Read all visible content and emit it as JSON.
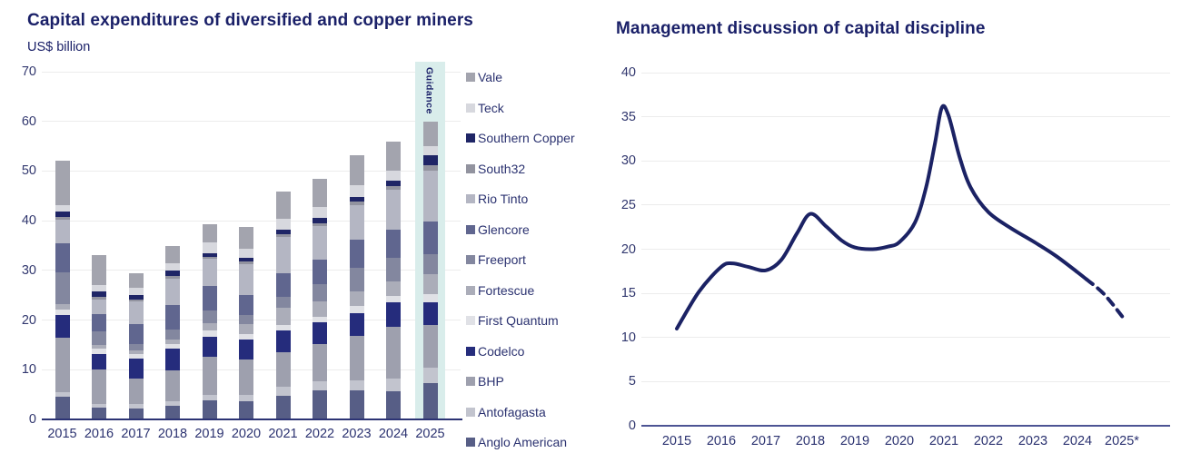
{
  "left_chart": {
    "title": "Capital expenditures of diversified and copper miners",
    "subtitle": "US$ billion",
    "guidance_label": "Guidance"
  },
  "right_chart": {
    "title": "Management discussion of capital discipline"
  },
  "colors": {
    "title_navy": "#1A2068",
    "tick_navy": "#32386F",
    "gridline": "#ECECEC",
    "left_axis_line": "#2C3374",
    "right_axis_line": "#4D5494",
    "guidance_band": "#D9EDEB",
    "line": "#1B2264"
  },
  "chart_data": [
    {
      "type": "bar",
      "stacked": true,
      "title": "Capital expenditures of diversified and copper miners",
      "ylabel": "US$ billion",
      "categories": [
        "2015",
        "2016",
        "2017",
        "2018",
        "2019",
        "2020",
        "2021",
        "2022",
        "2023",
        "2024",
        "2025"
      ],
      "ylim": [
        0,
        70
      ],
      "yticks": [
        0,
        10,
        20,
        30,
        40,
        50,
        60,
        70
      ],
      "grid": "horizontal",
      "legend_position": "right",
      "legend_order_top_to_bottom": [
        "Vale",
        "Teck",
        "Southern Copper",
        "South32",
        "Rio Tinto",
        "Glencore",
        "Freeport",
        "Fortescue",
        "First Quantum",
        "Codelco",
        "BHP",
        "Antofagasta",
        "Anglo American"
      ],
      "highlight": {
        "category": "2025",
        "label": "Guidance",
        "band_color": "#D9EDEB"
      },
      "series": [
        {
          "name": "Anglo American",
          "color": "#575E86",
          "values": [
            4.5,
            2.4,
            2.2,
            2.8,
            3.8,
            3.6,
            4.7,
            5.8,
            5.8,
            5.7,
            7.3
          ]
        },
        {
          "name": "Antofagasta",
          "color": "#C2C4CE",
          "values": [
            1.0,
            0.7,
            0.9,
            0.9,
            1.2,
            1.3,
            1.8,
            1.9,
            2.1,
            2.6,
            3.1
          ]
        },
        {
          "name": "BHP",
          "color": "#9EA0AE",
          "values": [
            11.0,
            6.9,
            5.2,
            6.2,
            7.6,
            7.1,
            7.1,
            7.5,
            8.9,
            10.3,
            8.6
          ]
        },
        {
          "name": "Codelco",
          "color": "#252C7C",
          "values": [
            4.6,
            3.2,
            4.0,
            4.3,
            4.0,
            4.0,
            4.4,
            4.3,
            4.5,
            4.9,
            4.6
          ]
        },
        {
          "name": "First Quantum",
          "color": "#E0E1E6",
          "values": [
            1.0,
            1.0,
            0.8,
            1.0,
            1.3,
            1.1,
            1.0,
            1.2,
            1.6,
            1.3,
            1.7
          ]
        },
        {
          "name": "Fortescue",
          "color": "#ABADB9",
          "values": [
            1.2,
            0.7,
            0.7,
            0.9,
            1.4,
            2.0,
            3.5,
            3.1,
            2.8,
            2.9,
            4.0
          ]
        },
        {
          "name": "Freeport",
          "color": "#83879F",
          "values": [
            6.3,
            2.8,
            1.4,
            2.0,
            2.6,
            2.0,
            2.1,
            3.5,
            4.8,
            4.8,
            4.0
          ]
        },
        {
          "name": "Glencore",
          "color": "#60668F",
          "values": [
            5.9,
            3.5,
            4.0,
            4.9,
            4.9,
            4.0,
            4.8,
            4.8,
            5.6,
            5.7,
            6.6
          ]
        },
        {
          "name": "Rio Tinto",
          "color": "#B4B6C3",
          "values": [
            4.7,
            3.0,
            4.5,
            5.4,
            5.5,
            6.2,
            7.4,
            6.8,
            7.1,
            8.1,
            10.1
          ]
        },
        {
          "name": "South32",
          "color": "#92939F",
          "values": [
            0.5,
            0.4,
            0.4,
            0.5,
            0.5,
            0.5,
            0.5,
            0.6,
            0.6,
            0.7,
            1.2
          ]
        },
        {
          "name": "Southern Copper",
          "color": "#1F2566",
          "values": [
            1.2,
            1.1,
            1.0,
            1.1,
            0.7,
            0.8,
            0.9,
            1.0,
            1.0,
            1.1,
            2.0
          ]
        },
        {
          "name": "Teck",
          "color": "#D7D8DE",
          "values": [
            1.3,
            1.4,
            1.4,
            1.5,
            2.1,
            1.8,
            2.2,
            2.2,
            2.4,
            1.9,
            1.8
          ]
        },
        {
          "name": "Vale",
          "color": "#A3A4AE",
          "values": [
            8.8,
            5.9,
            3.0,
            3.5,
            3.7,
            4.4,
            5.4,
            5.8,
            5.9,
            6.0,
            5.0
          ]
        }
      ],
      "totals": [
        52.0,
        33.0,
        29.5,
        35.0,
        39.3,
        38.8,
        45.8,
        48.5,
        53.1,
        56.0,
        60.0
      ]
    },
    {
      "type": "line",
      "title": "Management discussion of capital discipline",
      "x_tick_labels": [
        "2015",
        "2016",
        "2017",
        "2018",
        "2019",
        "2020",
        "2021",
        "2022",
        "2023",
        "2024",
        "2025*"
      ],
      "ylim": [
        0,
        40
      ],
      "yticks": [
        0,
        5,
        10,
        15,
        20,
        25,
        30,
        35,
        40
      ],
      "grid": "horizontal",
      "line_color": "#1B2264",
      "solid_points": [
        [
          2015.0,
          11.0
        ],
        [
          2015.5,
          15.2
        ],
        [
          2016.0,
          18.0
        ],
        [
          2016.25,
          18.4
        ],
        [
          2016.6,
          18.0
        ],
        [
          2017.0,
          17.6
        ],
        [
          2017.35,
          18.8
        ],
        [
          2017.7,
          21.8
        ],
        [
          2018.0,
          24.0
        ],
        [
          2018.35,
          22.6
        ],
        [
          2018.7,
          21.0
        ],
        [
          2019.0,
          20.2
        ],
        [
          2019.4,
          20.0
        ],
        [
          2019.75,
          20.3
        ],
        [
          2020.0,
          20.8
        ],
        [
          2020.35,
          23.0
        ],
        [
          2020.6,
          27.0
        ],
        [
          2020.8,
          32.0
        ],
        [
          2020.95,
          36.0
        ],
        [
          2021.1,
          35.2
        ],
        [
          2021.35,
          30.5
        ],
        [
          2021.6,
          27.0
        ],
        [
          2022.0,
          24.2
        ],
        [
          2022.5,
          22.4
        ],
        [
          2023.0,
          20.9
        ],
        [
          2023.5,
          19.3
        ],
        [
          2024.0,
          17.4
        ],
        [
          2024.2,
          16.6
        ]
      ],
      "dashed_points": [
        [
          2024.2,
          16.6
        ],
        [
          2024.6,
          14.9
        ],
        [
          2025.05,
          12.1
        ]
      ],
      "annual_values": {
        "2015": 11,
        "2016": 18,
        "2017": 17.6,
        "2018": 24,
        "2019": 20.2,
        "2020": 20.8,
        "2021": 36,
        "2022": 24.2,
        "2023": 20.9,
        "2024": 17.4,
        "2025*": 12.1
      }
    }
  ]
}
